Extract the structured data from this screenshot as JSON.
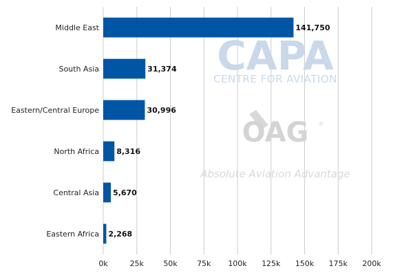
{
  "chart_data": {
    "type": "bar",
    "orientation": "horizontal",
    "categories": [
      "Middle East",
      "South Asia",
      "Eastern/Central Europe",
      "North Africa",
      "Central Asia",
      "Eastern Africa"
    ],
    "values": [
      141750,
      31374,
      30996,
      8316,
      5670,
      2268
    ],
    "value_labels": [
      "141,750",
      "31,374",
      "30,996",
      "8,316",
      "5,670",
      "2,268"
    ],
    "xlim": [
      0,
      200000
    ],
    "x_ticks": [
      0,
      25000,
      50000,
      75000,
      100000,
      125000,
      150000,
      175000,
      200000
    ],
    "x_tick_labels": [
      "0k",
      "25k",
      "50k",
      "75k",
      "100k",
      "125k",
      "150k",
      "175k",
      "200k"
    ],
    "grid": "vertical",
    "bar_color": "#0055a5",
    "grid_color": "#cccccc"
  },
  "watermarks": {
    "capa_title": "CAPA",
    "capa_subtitle": "CENTRE FOR AVIATION",
    "oag_title": "OAG",
    "oag_registered": "®",
    "oag_subtitle": "Absolute Aviation Advantage"
  }
}
